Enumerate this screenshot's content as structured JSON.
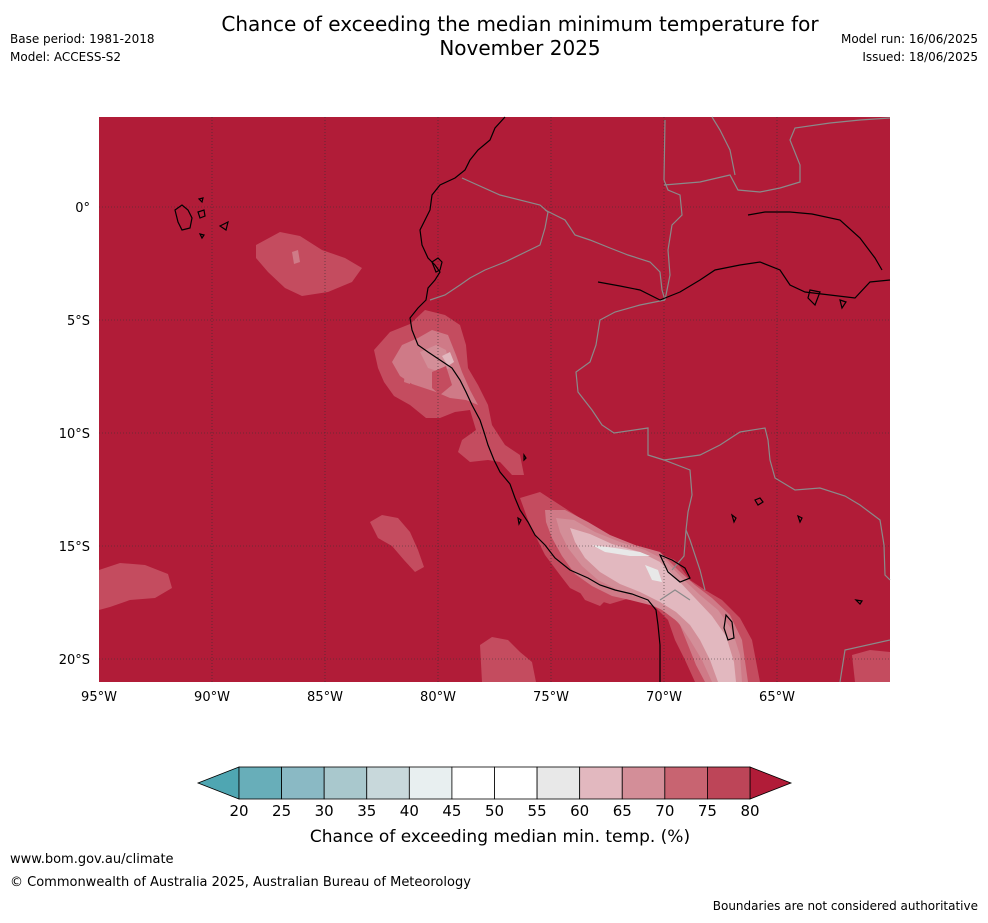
{
  "title_line1": "Chance of exceeding the median minimum temperature for",
  "title_line2": "November 2025",
  "meta_left": {
    "base_period": "Base period: 1981-2018",
    "model": "Model: ACCESS-S2"
  },
  "meta_right": {
    "model_run": "Model run: 16/06/2025",
    "issued": "Issued: 18/06/2025"
  },
  "map": {
    "background_color": "#b11c38",
    "lat_labels": [
      "0°",
      "5°S",
      "10°S",
      "15°S",
      "20°S"
    ],
    "lon_labels": [
      "95°W",
      "90°W",
      "85°W",
      "80°W",
      "75°W",
      "70°W",
      "65°W"
    ]
  },
  "colorbar": {
    "ticks": [
      "20",
      "25",
      "30",
      "35",
      "40",
      "45",
      "50",
      "55",
      "60",
      "65",
      "70",
      "75",
      "80"
    ],
    "colors": [
      "#68aeb9",
      "#8ab9c4",
      "#a9c8cd",
      "#c8d8db",
      "#e8eff0",
      "#ffffff",
      "#ffffff",
      "#e8e8e8",
      "#e2b8bf",
      "#d38e98",
      "#c86471",
      "#bd4558"
    ],
    "under_color": "#4fa6b2",
    "over_color": "#b11c38",
    "label": "Chance of exceeding median min. temp. (%)"
  },
  "footer": {
    "link": "www.bom.gov.au/climate",
    "copyright": "© Commonwealth of Australia 2025, Australian Bureau of Meteorology",
    "note": "Boundaries are not considered authoritative"
  }
}
